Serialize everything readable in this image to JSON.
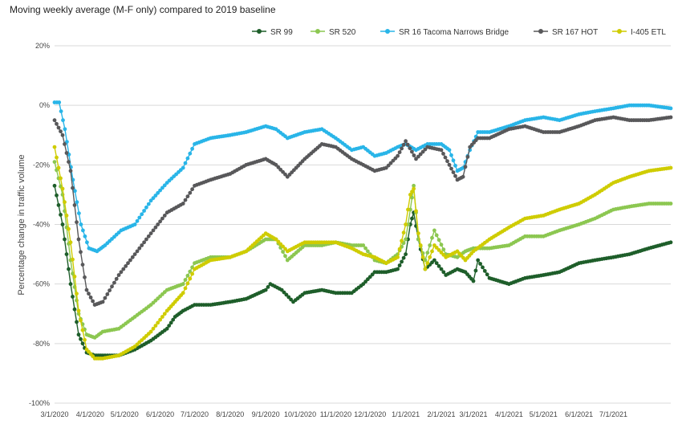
{
  "chart_data": {
    "type": "line",
    "title": "Moving weekly average (M-F only) compared to 2019 baseline",
    "ylabel": "Percentage change in traffic volume",
    "xlabel": "",
    "ylim": [
      -100,
      20
    ],
    "yticks": [
      -100,
      -80,
      -60,
      -40,
      -20,
      0,
      20
    ],
    "ytick_labels": [
      "-100%",
      "-80%",
      "-60%",
      "-40%",
      "-20%",
      "0%",
      "20%"
    ],
    "x_range": [
      "2020-03-01",
      "2021-08-20"
    ],
    "xtick_labels": [
      "3/1/2020",
      "4/1/2020",
      "5/1/2020",
      "6/1/2020",
      "7/1/2020",
      "8/1/2020",
      "9/1/2020",
      "10/1/2020",
      "11/1/2020",
      "12/1/2020",
      "1/1/2021",
      "2/1/2021",
      "3/1/2021",
      "4/1/2021",
      "5/1/2021",
      "6/1/2021",
      "7/1/2021"
    ],
    "grid": "horizontal",
    "legend_position": "top",
    "series": [
      {
        "name": "SR 99",
        "color": "#1e5e2a",
        "points": [
          [
            "2020-03-01",
            -27
          ],
          [
            "2020-03-08",
            -40
          ],
          [
            "2020-03-15",
            -60
          ],
          [
            "2020-03-22",
            -77
          ],
          [
            "2020-03-29",
            -83
          ],
          [
            "2020-04-05",
            -84
          ],
          [
            "2020-04-12",
            -84
          ],
          [
            "2020-04-26",
            -84
          ],
          [
            "2020-05-10",
            -82
          ],
          [
            "2020-05-24",
            -79
          ],
          [
            "2020-06-07",
            -75
          ],
          [
            "2020-06-14",
            -71
          ],
          [
            "2020-06-21",
            -69
          ],
          [
            "2020-07-01",
            -67
          ],
          [
            "2020-07-15",
            -67
          ],
          [
            "2020-08-01",
            -66
          ],
          [
            "2020-08-15",
            -65
          ],
          [
            "2020-09-01",
            -62
          ],
          [
            "2020-09-05",
            -60
          ],
          [
            "2020-09-15",
            -62
          ],
          [
            "2020-09-25",
            -66
          ],
          [
            "2020-10-05",
            -63
          ],
          [
            "2020-10-20",
            -62
          ],
          [
            "2020-11-01",
            -63
          ],
          [
            "2020-11-15",
            -63
          ],
          [
            "2020-11-25",
            -60
          ],
          [
            "2020-12-05",
            -56
          ],
          [
            "2020-12-15",
            -56
          ],
          [
            "2020-12-25",
            -55
          ],
          [
            "2021-01-01",
            -50
          ],
          [
            "2021-01-05",
            -40
          ],
          [
            "2021-01-08",
            -36
          ],
          [
            "2021-01-12",
            -45
          ],
          [
            "2021-01-18",
            -55
          ],
          [
            "2021-01-26",
            -52
          ],
          [
            "2021-02-05",
            -57
          ],
          [
            "2021-02-15",
            -55
          ],
          [
            "2021-02-22",
            -56
          ],
          [
            "2021-03-01",
            -59
          ],
          [
            "2021-03-05",
            -52
          ],
          [
            "2021-03-15",
            -58
          ],
          [
            "2021-04-01",
            -60
          ],
          [
            "2021-04-15",
            -58
          ],
          [
            "2021-05-01",
            -57
          ],
          [
            "2021-05-15",
            -56
          ],
          [
            "2021-06-01",
            -53
          ],
          [
            "2021-06-15",
            -52
          ],
          [
            "2021-07-01",
            -51
          ],
          [
            "2021-07-15",
            -50
          ],
          [
            "2021-08-01",
            -48
          ],
          [
            "2021-08-20",
            -46
          ]
        ]
      },
      {
        "name": "SR 520",
        "color": "#8cc751",
        "points": [
          [
            "2020-03-01",
            -19
          ],
          [
            "2020-03-08",
            -30
          ],
          [
            "2020-03-15",
            -52
          ],
          [
            "2020-03-22",
            -70
          ],
          [
            "2020-03-29",
            -77
          ],
          [
            "2020-04-05",
            -78
          ],
          [
            "2020-04-12",
            -76
          ],
          [
            "2020-04-26",
            -75
          ],
          [
            "2020-05-10",
            -71
          ],
          [
            "2020-05-24",
            -67
          ],
          [
            "2020-06-07",
            -62
          ],
          [
            "2020-06-14",
            -61
          ],
          [
            "2020-06-21",
            -60
          ],
          [
            "2020-07-01",
            -53
          ],
          [
            "2020-07-15",
            -51
          ],
          [
            "2020-08-01",
            -51
          ],
          [
            "2020-08-15",
            -49
          ],
          [
            "2020-09-01",
            -45
          ],
          [
            "2020-09-10",
            -45
          ],
          [
            "2020-09-20",
            -52
          ],
          [
            "2020-10-05",
            -47
          ],
          [
            "2020-10-20",
            -47
          ],
          [
            "2020-11-01",
            -46
          ],
          [
            "2020-11-15",
            -47
          ],
          [
            "2020-11-25",
            -47
          ],
          [
            "2020-12-05",
            -52
          ],
          [
            "2020-12-15",
            -53
          ],
          [
            "2020-12-25",
            -50
          ],
          [
            "2021-01-01",
            -45
          ],
          [
            "2021-01-05",
            -35
          ],
          [
            "2021-01-08",
            -27
          ],
          [
            "2021-01-12",
            -45
          ],
          [
            "2021-01-18",
            -52
          ],
          [
            "2021-01-26",
            -42
          ],
          [
            "2021-02-05",
            -50
          ],
          [
            "2021-02-15",
            -51
          ],
          [
            "2021-02-22",
            -49
          ],
          [
            "2021-03-01",
            -48
          ],
          [
            "2021-03-15",
            -48
          ],
          [
            "2021-04-01",
            -47
          ],
          [
            "2021-04-15",
            -44
          ],
          [
            "2021-05-01",
            -44
          ],
          [
            "2021-05-15",
            -42
          ],
          [
            "2021-06-01",
            -40
          ],
          [
            "2021-06-15",
            -38
          ],
          [
            "2021-07-01",
            -35
          ],
          [
            "2021-07-15",
            -34
          ],
          [
            "2021-08-01",
            -33
          ],
          [
            "2021-08-20",
            -33
          ]
        ]
      },
      {
        "name": "SR 16 Tacoma Narrows Bridge",
        "color": "#29b5e8",
        "points": [
          [
            "2020-03-01",
            1
          ],
          [
            "2020-03-05",
            1
          ],
          [
            "2020-03-10",
            -8
          ],
          [
            "2020-03-17",
            -25
          ],
          [
            "2020-03-24",
            -40
          ],
          [
            "2020-03-31",
            -48
          ],
          [
            "2020-04-07",
            -49
          ],
          [
            "2020-04-14",
            -47
          ],
          [
            "2020-04-28",
            -42
          ],
          [
            "2020-05-10",
            -40
          ],
          [
            "2020-05-24",
            -32
          ],
          [
            "2020-06-07",
            -26
          ],
          [
            "2020-06-21",
            -21
          ],
          [
            "2020-07-01",
            -13
          ],
          [
            "2020-07-15",
            -11
          ],
          [
            "2020-08-01",
            -10
          ],
          [
            "2020-08-15",
            -9
          ],
          [
            "2020-09-01",
            -7
          ],
          [
            "2020-09-10",
            -8
          ],
          [
            "2020-09-20",
            -11
          ],
          [
            "2020-10-05",
            -9
          ],
          [
            "2020-10-20",
            -8
          ],
          [
            "2020-11-01",
            -11
          ],
          [
            "2020-11-15",
            -15
          ],
          [
            "2020-11-25",
            -14
          ],
          [
            "2020-12-05",
            -17
          ],
          [
            "2020-12-15",
            -16
          ],
          [
            "2020-12-25",
            -14
          ],
          [
            "2021-01-01",
            -13
          ],
          [
            "2021-01-10",
            -15
          ],
          [
            "2021-01-20",
            -13
          ],
          [
            "2021-02-01",
            -13
          ],
          [
            "2021-02-08",
            -15
          ],
          [
            "2021-02-15",
            -22
          ],
          [
            "2021-02-20",
            -21
          ],
          [
            "2021-02-26",
            -15
          ],
          [
            "2021-03-05",
            -9
          ],
          [
            "2021-03-15",
            -9
          ],
          [
            "2021-04-01",
            -7
          ],
          [
            "2021-04-15",
            -5
          ],
          [
            "2021-05-01",
            -4
          ],
          [
            "2021-05-15",
            -5
          ],
          [
            "2021-06-01",
            -3
          ],
          [
            "2021-06-15",
            -2
          ],
          [
            "2021-07-01",
            -1
          ],
          [
            "2021-07-15",
            0
          ],
          [
            "2021-08-01",
            0
          ],
          [
            "2021-08-20",
            -1
          ]
        ]
      },
      {
        "name": "SR 167 HOT",
        "color": "#58585a",
        "points": [
          [
            "2020-03-01",
            -5
          ],
          [
            "2020-03-08",
            -10
          ],
          [
            "2020-03-15",
            -22
          ],
          [
            "2020-03-22",
            -45
          ],
          [
            "2020-03-29",
            -62
          ],
          [
            "2020-04-05",
            -67
          ],
          [
            "2020-04-12",
            -66
          ],
          [
            "2020-04-26",
            -57
          ],
          [
            "2020-05-10",
            -50
          ],
          [
            "2020-05-24",
            -43
          ],
          [
            "2020-06-07",
            -36
          ],
          [
            "2020-06-21",
            -33
          ],
          [
            "2020-07-01",
            -27
          ],
          [
            "2020-07-15",
            -25
          ],
          [
            "2020-08-01",
            -23
          ],
          [
            "2020-08-15",
            -20
          ],
          [
            "2020-09-01",
            -18
          ],
          [
            "2020-09-10",
            -20
          ],
          [
            "2020-09-20",
            -24
          ],
          [
            "2020-10-05",
            -18
          ],
          [
            "2020-10-20",
            -13
          ],
          [
            "2020-11-01",
            -14
          ],
          [
            "2020-11-15",
            -18
          ],
          [
            "2020-11-25",
            -20
          ],
          [
            "2020-12-05",
            -22
          ],
          [
            "2020-12-15",
            -21
          ],
          [
            "2020-12-25",
            -17
          ],
          [
            "2021-01-01",
            -12
          ],
          [
            "2021-01-10",
            -18
          ],
          [
            "2021-01-20",
            -14
          ],
          [
            "2021-02-01",
            -15
          ],
          [
            "2021-02-08",
            -20
          ],
          [
            "2021-02-15",
            -25
          ],
          [
            "2021-02-20",
            -24
          ],
          [
            "2021-02-26",
            -14
          ],
          [
            "2021-03-05",
            -11
          ],
          [
            "2021-03-15",
            -11
          ],
          [
            "2021-04-01",
            -8
          ],
          [
            "2021-04-15",
            -7
          ],
          [
            "2021-05-01",
            -9
          ],
          [
            "2021-05-15",
            -9
          ],
          [
            "2021-06-01",
            -7
          ],
          [
            "2021-06-15",
            -5
          ],
          [
            "2021-07-01",
            -4
          ],
          [
            "2021-07-15",
            -5
          ],
          [
            "2021-08-01",
            -5
          ],
          [
            "2021-08-20",
            -4
          ]
        ]
      },
      {
        "name": "I-405 ETL",
        "color": "#cfcc00",
        "points": [
          [
            "2020-03-01",
            -14
          ],
          [
            "2020-03-08",
            -28
          ],
          [
            "2020-03-15",
            -46
          ],
          [
            "2020-03-22",
            -69
          ],
          [
            "2020-03-29",
            -82
          ],
          [
            "2020-04-05",
            -85
          ],
          [
            "2020-04-12",
            -85
          ],
          [
            "2020-04-26",
            -84
          ],
          [
            "2020-05-10",
            -81
          ],
          [
            "2020-05-24",
            -76
          ],
          [
            "2020-06-07",
            -69
          ],
          [
            "2020-06-14",
            -66
          ],
          [
            "2020-06-21",
            -63
          ],
          [
            "2020-07-01",
            -55
          ],
          [
            "2020-07-15",
            -52
          ],
          [
            "2020-08-01",
            -51
          ],
          [
            "2020-08-15",
            -49
          ],
          [
            "2020-09-01",
            -43
          ],
          [
            "2020-09-10",
            -45
          ],
          [
            "2020-09-20",
            -49
          ],
          [
            "2020-10-05",
            -46
          ],
          [
            "2020-10-20",
            -46
          ],
          [
            "2020-11-01",
            -46
          ],
          [
            "2020-11-15",
            -48
          ],
          [
            "2020-11-25",
            -50
          ],
          [
            "2020-12-05",
            -51
          ],
          [
            "2020-12-15",
            -53
          ],
          [
            "2020-12-25",
            -51
          ],
          [
            "2021-01-01",
            -40
          ],
          [
            "2021-01-05",
            -30
          ],
          [
            "2021-01-08",
            -28
          ],
          [
            "2021-01-12",
            -43
          ],
          [
            "2021-01-18",
            -55
          ],
          [
            "2021-01-26",
            -47
          ],
          [
            "2021-02-05",
            -51
          ],
          [
            "2021-02-15",
            -49
          ],
          [
            "2021-02-22",
            -52
          ],
          [
            "2021-03-01",
            -49
          ],
          [
            "2021-03-15",
            -45
          ],
          [
            "2021-04-01",
            -41
          ],
          [
            "2021-04-15",
            -38
          ],
          [
            "2021-05-01",
            -37
          ],
          [
            "2021-05-15",
            -35
          ],
          [
            "2021-06-01",
            -33
          ],
          [
            "2021-06-15",
            -30
          ],
          [
            "2021-07-01",
            -26
          ],
          [
            "2021-07-15",
            -24
          ],
          [
            "2021-08-01",
            -22
          ],
          [
            "2021-08-20",
            -21
          ]
        ]
      }
    ]
  }
}
